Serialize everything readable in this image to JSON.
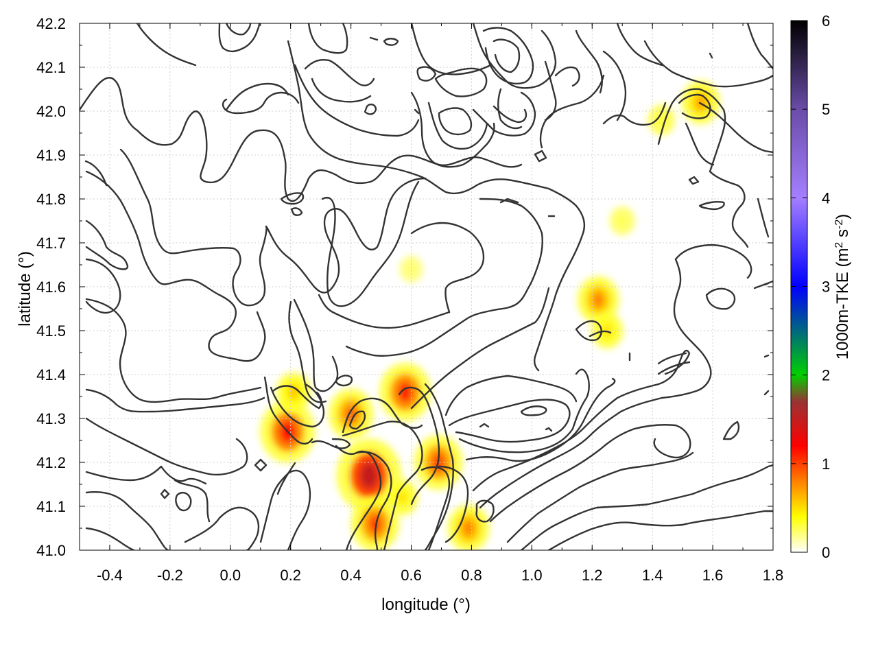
{
  "chart_data": {
    "type": "heatmap",
    "title": "",
    "xlabel": "longitude (°)",
    "ylabel": "latitude (°)",
    "colorbar_label": "1000m-TKE (m2 s-2)",
    "colorbar_label_parts": {
      "base": "1000m-TKE (m",
      "sup1": "2",
      "mid": " s",
      "sup2": "-2",
      "end": ")"
    },
    "xlim": [
      -0.5,
      1.8
    ],
    "ylim": [
      41.0,
      42.2
    ],
    "xticks": [
      -0.4,
      -0.2,
      0.0,
      0.2,
      0.4,
      0.6,
      0.8,
      1.0,
      1.2,
      1.4,
      1.6,
      1.8
    ],
    "xtick_labels": [
      "-0.4",
      "-0.2",
      "0.0",
      "0.2",
      "0.4",
      "0.6",
      "0.8",
      "1.0",
      "1.2",
      "1.4",
      "1.6",
      "1.8"
    ],
    "yticks": [
      41.0,
      41.1,
      41.2,
      41.3,
      41.4,
      41.5,
      41.6,
      41.7,
      41.8,
      41.9,
      42.0,
      42.1,
      42.2
    ],
    "ytick_labels": [
      "41.0",
      "41.1",
      "41.2",
      "41.3",
      "41.4",
      "41.5",
      "41.6",
      "41.7",
      "41.8",
      "41.9",
      "42.0",
      "42.1",
      "42.2"
    ],
    "colorbar_range": [
      0,
      6
    ],
    "colorbar_ticks": [
      0,
      1,
      2,
      3,
      4,
      5,
      6
    ],
    "colorbar_tick_labels": [
      "0",
      "1",
      "2",
      "3",
      "4",
      "5",
      "6"
    ],
    "colormap": [
      {
        "value": 0.0,
        "color": "#ffffff"
      },
      {
        "value": 0.4,
        "color": "#ffff00"
      },
      {
        "value": 0.8,
        "color": "#ff8000"
      },
      {
        "value": 1.2,
        "color": "#ff0000"
      },
      {
        "value": 1.7,
        "color": "#993333"
      },
      {
        "value": 2.0,
        "color": "#00d000"
      },
      {
        "value": 3.0,
        "color": "#0000ff"
      },
      {
        "value": 4.0,
        "color": "#a57fff"
      },
      {
        "value": 5.0,
        "color": "#6a4ca8"
      },
      {
        "value": 6.0,
        "color": "#000000"
      }
    ],
    "grid": true,
    "tke_hotspots": [
      {
        "lon": 0.19,
        "lat": 41.27,
        "value": 1.2
      },
      {
        "lon": 0.21,
        "lat": 41.36,
        "value": 0.6
      },
      {
        "lon": 0.46,
        "lat": 41.17,
        "value": 1.5
      },
      {
        "lon": 0.4,
        "lat": 41.31,
        "value": 0.9
      },
      {
        "lon": 0.58,
        "lat": 41.36,
        "value": 1.1
      },
      {
        "lon": 0.69,
        "lat": 41.2,
        "value": 1.0
      },
      {
        "lon": 0.48,
        "lat": 41.06,
        "value": 1.0
      },
      {
        "lon": 0.79,
        "lat": 41.05,
        "value": 0.8
      },
      {
        "lon": 0.57,
        "lat": 41.12,
        "value": 0.5
      },
      {
        "lon": 1.22,
        "lat": 41.57,
        "value": 0.8
      },
      {
        "lon": 1.25,
        "lat": 41.5,
        "value": 0.5
      },
      {
        "lon": 1.56,
        "lat": 42.02,
        "value": 0.7
      },
      {
        "lon": 1.43,
        "lat": 41.98,
        "value": 0.35
      },
      {
        "lon": 0.6,
        "lat": 41.64,
        "value": 0.25
      },
      {
        "lon": 1.3,
        "lat": 41.75,
        "value": 0.3
      }
    ],
    "terrain_contours": "black elevation isolines"
  }
}
